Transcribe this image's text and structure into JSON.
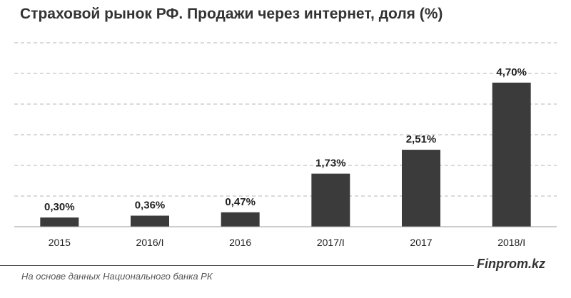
{
  "title": "Страховой рынок РФ. Продажи через интернет, доля (%)",
  "source_note": "На основе данных Национального  банка РК",
  "brand": "Finprom.kz",
  "colors": {
    "bar": "#3b3b3b",
    "grid": "#b5b5b5",
    "axis": "#9a9a9a",
    "text": "#222222"
  },
  "chart_data": {
    "type": "bar",
    "categories": [
      "2015",
      "2016/I",
      "2016",
      "2017/I",
      "2017",
      "2018/I"
    ],
    "values": [
      0.3,
      0.36,
      0.47,
      1.73,
      2.51,
      4.7
    ],
    "data_labels": [
      "0,30%",
      "0,36%",
      "0,47%",
      "1,73%",
      "2,51%",
      "4,70%"
    ],
    "title": "Страховой рынок РФ. Продажи через интернет, доля (%)",
    "ylim": [
      0,
      6
    ],
    "grid": true,
    "legend": "none"
  }
}
